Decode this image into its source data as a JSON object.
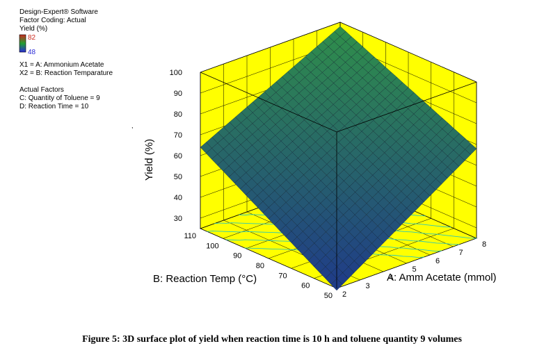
{
  "software": {
    "name": "Design-Expert® Software",
    "coding": "Factor Coding: Actual",
    "response": "Yield (%)",
    "legend_max": "82",
    "legend_min": "48",
    "legend_top_color": "#cc2a1f",
    "legend_bottom_color": "#2b2bd6"
  },
  "factors": {
    "x1": "X1 = A: Ammonium Acetate",
    "x2": "X2 = B: Reaction Temparature"
  },
  "actual_factors": {
    "title": "Actual Factors",
    "c": "C: Quantity of Toluene = 9",
    "d": "D: Reaction Time = 10"
  },
  "caption": "Figure 5: 3D surface plot of yield when reaction time is 10 h and toluene quantity 9 volumes",
  "colors": {
    "box_fill": "#ffff00",
    "surface_low": "#1f3a8a",
    "surface_high": "#2f8f4a",
    "contour": "#29c8b8"
  },
  "chart_data": {
    "type": "surface3d",
    "xlabel": "A: Amm Acetate (mmol)",
    "ylabel": "B: Reaction Temp (°C)",
    "zlabel": "Yield (%)",
    "x_ticks": [
      "2",
      "3",
      "4",
      "5",
      "6",
      "7",
      "8"
    ],
    "y_ticks": [
      "50",
      "60",
      "70",
      "80",
      "90",
      "100",
      "110"
    ],
    "z_ticks": [
      "30",
      "40",
      "50",
      "60",
      "70",
      "80",
      "90",
      "100"
    ],
    "xlim": [
      2,
      8
    ],
    "ylim": [
      50,
      110
    ],
    "zlim": [
      25,
      100
    ],
    "corners": [
      {
        "A": 2,
        "B": 50,
        "yield": 24
      },
      {
        "A": 8,
        "B": 50,
        "yield": 68
      },
      {
        "A": 2,
        "B": 110,
        "yield": 64
      },
      {
        "A": 8,
        "B": 110,
        "yield": 98
      }
    ]
  }
}
